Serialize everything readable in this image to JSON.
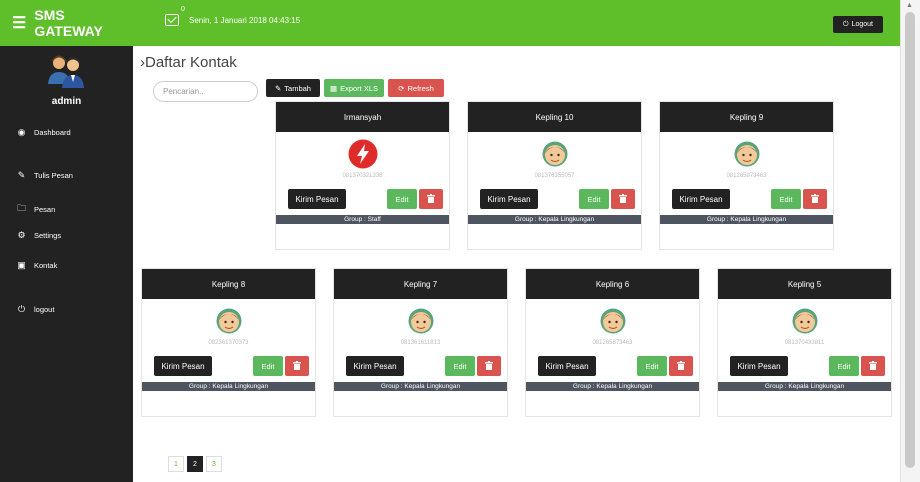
{
  "header": {
    "brand": "SMS GATEWAY",
    "datetime": "Senin, 1 Januari 2018 04:43:15",
    "mail_count": "0",
    "logout_label": "Logout"
  },
  "sidebar": {
    "user": "admin",
    "items": [
      {
        "label": "Dashboard",
        "icon": "dashboard-icon"
      },
      {
        "label": "Tulis Pesan",
        "icon": "edit-icon"
      },
      {
        "label": "Pesan",
        "icon": "folder-icon"
      },
      {
        "label": "Settings",
        "icon": "gears-icon"
      },
      {
        "label": "Kontak",
        "icon": "address-book-icon"
      },
      {
        "label": "logout",
        "icon": "power-icon"
      }
    ]
  },
  "main": {
    "title": "›Daftar Kontak",
    "search_placeholder": "Pencarian..",
    "toolbar": {
      "tambah": "Tambah",
      "export": "Export XLS",
      "refresh": "Refresh"
    },
    "contacts": [
      {
        "name": "Irmansyah",
        "phone": "081370321336",
        "group": "Group : Staff",
        "avatar": "flash"
      },
      {
        "name": "Kepling 10",
        "phone": "081376355057",
        "group": "Group : Kepala Lingkungan",
        "avatar": "face"
      },
      {
        "name": "Kepling 9",
        "phone": "081265873463",
        "group": "Group : Kepala Lingkungan",
        "avatar": "face"
      },
      {
        "name": "Kepling 8",
        "phone": "082361370373",
        "group": "Group : Kepala Lingkungan",
        "avatar": "face"
      },
      {
        "name": "Kepling 7",
        "phone": "081361611813",
        "group": "Group : Kepala Lingkungan",
        "avatar": "face"
      },
      {
        "name": "Kepling 6",
        "phone": "081265873463",
        "group": "Group : Kepala Lingkungan",
        "avatar": "face"
      },
      {
        "name": "Kepling 5",
        "phone": "081370433811",
        "group": "Group : Kepala Lingkungan",
        "avatar": "face"
      }
    ],
    "card_buttons": {
      "kirim": "Kirim Pesan",
      "edit": "Edit"
    },
    "pagination": [
      "1",
      "2",
      "3"
    ],
    "active_page": "2"
  },
  "colors": {
    "brand_green": "#5fbf2b",
    "dark": "#222222",
    "edit_green": "#5cb85c",
    "danger_red": "#d9534f",
    "group_bar": "#4e5460"
  }
}
